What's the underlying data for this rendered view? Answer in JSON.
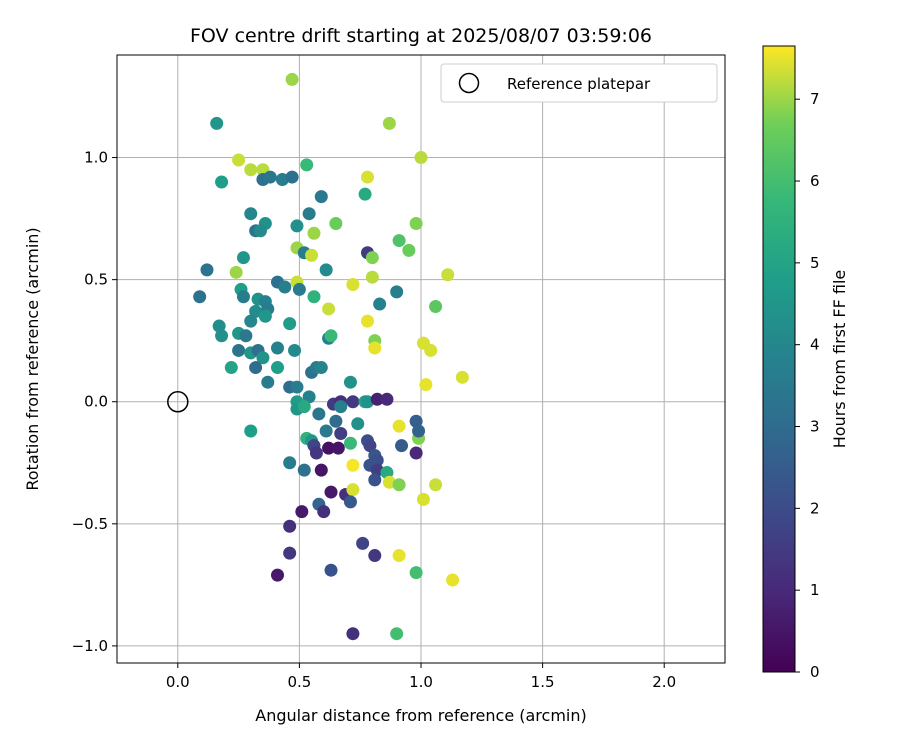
{
  "chart_data": {
    "type": "scatter",
    "title": "FOV centre drift starting at 2025/08/07 03:59:06",
    "xlabel": "Angular distance from reference (arcmin)",
    "ylabel": "Rotation from reference (arcmin)",
    "xlim": [
      -0.25,
      2.25
    ],
    "ylim": [
      -1.07,
      1.42
    ],
    "x_ticks": [
      0.0,
      0.5,
      1.0,
      1.5,
      2.0
    ],
    "x_tick_labels": [
      "0.0",
      "0.5",
      "1.0",
      "1.5",
      "2.0"
    ],
    "y_ticks": [
      -1.0,
      -0.5,
      0.0,
      0.5,
      1.0
    ],
    "y_tick_labels": [
      "−1.0",
      "−0.5",
      "0.0",
      "0.5",
      "1.0"
    ],
    "grid": true,
    "legend": {
      "location": "top-right",
      "entries": [
        "Reference platepar"
      ]
    },
    "reference_point": {
      "x": 0.0,
      "y": 0.0
    },
    "colorbar": {
      "label": "Hours from first FF file",
      "colormap": "viridis",
      "range": [
        0,
        7.65
      ],
      "ticks": [
        0,
        1,
        2,
        3,
        4,
        5,
        6,
        7
      ],
      "tick_labels": [
        "0",
        "1",
        "2",
        "3",
        "4",
        "5",
        "6",
        "7"
      ]
    },
    "points": [
      {
        "x": 0.47,
        "y": 1.32,
        "h": 7.0
      },
      {
        "x": 0.87,
        "y": 1.14,
        "h": 7.0
      },
      {
        "x": 0.16,
        "y": 1.14,
        "h": 4.5
      },
      {
        "x": 1.0,
        "y": 1.0,
        "h": 7.2
      },
      {
        "x": 0.25,
        "y": 0.99,
        "h": 7.3
      },
      {
        "x": 0.53,
        "y": 0.97,
        "h": 5.8
      },
      {
        "x": 0.3,
        "y": 0.95,
        "h": 7.2
      },
      {
        "x": 0.35,
        "y": 0.95,
        "h": 7.2
      },
      {
        "x": 0.78,
        "y": 0.92,
        "h": 7.4
      },
      {
        "x": 0.18,
        "y": 0.9,
        "h": 4.8
      },
      {
        "x": 0.35,
        "y": 0.91,
        "h": 3.2
      },
      {
        "x": 0.38,
        "y": 0.92,
        "h": 3.4
      },
      {
        "x": 0.43,
        "y": 0.91,
        "h": 3.6
      },
      {
        "x": 0.47,
        "y": 0.92,
        "h": 3.2
      },
      {
        "x": 0.77,
        "y": 0.85,
        "h": 5.2
      },
      {
        "x": 0.59,
        "y": 0.84,
        "h": 3.5
      },
      {
        "x": 0.3,
        "y": 0.77,
        "h": 4.0
      },
      {
        "x": 0.54,
        "y": 0.77,
        "h": 3.6
      },
      {
        "x": 0.36,
        "y": 0.73,
        "h": 4.3
      },
      {
        "x": 0.49,
        "y": 0.72,
        "h": 4.3
      },
      {
        "x": 0.65,
        "y": 0.73,
        "h": 6.6
      },
      {
        "x": 0.98,
        "y": 0.73,
        "h": 6.8
      },
      {
        "x": 0.32,
        "y": 0.7,
        "h": 3.3
      },
      {
        "x": 0.34,
        "y": 0.7,
        "h": 4.1
      },
      {
        "x": 0.56,
        "y": 0.69,
        "h": 7.0
      },
      {
        "x": 0.91,
        "y": 0.66,
        "h": 6.2
      },
      {
        "x": 0.49,
        "y": 0.63,
        "h": 7.0
      },
      {
        "x": 0.95,
        "y": 0.62,
        "h": 6.6
      },
      {
        "x": 0.78,
        "y": 0.61,
        "h": 1.5
      },
      {
        "x": 0.52,
        "y": 0.61,
        "h": 3.6
      },
      {
        "x": 0.27,
        "y": 0.59,
        "h": 4.5
      },
      {
        "x": 0.55,
        "y": 0.6,
        "h": 7.3
      },
      {
        "x": 0.8,
        "y": 0.59,
        "h": 6.8
      },
      {
        "x": 0.12,
        "y": 0.54,
        "h": 3.3
      },
      {
        "x": 0.61,
        "y": 0.54,
        "h": 4.1
      },
      {
        "x": 0.24,
        "y": 0.53,
        "h": 7.0
      },
      {
        "x": 0.8,
        "y": 0.51,
        "h": 7.2
      },
      {
        "x": 1.11,
        "y": 0.52,
        "h": 7.3
      },
      {
        "x": 0.41,
        "y": 0.49,
        "h": 3.2
      },
      {
        "x": 0.49,
        "y": 0.49,
        "h": 7.3
      },
      {
        "x": 0.44,
        "y": 0.47,
        "h": 3.7
      },
      {
        "x": 0.5,
        "y": 0.46,
        "h": 3.6
      },
      {
        "x": 0.72,
        "y": 0.48,
        "h": 7.4
      },
      {
        "x": 0.26,
        "y": 0.46,
        "h": 4.8
      },
      {
        "x": 0.09,
        "y": 0.43,
        "h": 3.2
      },
      {
        "x": 0.27,
        "y": 0.43,
        "h": 3.6
      },
      {
        "x": 0.33,
        "y": 0.42,
        "h": 4.4
      },
      {
        "x": 0.36,
        "y": 0.41,
        "h": 3.8
      },
      {
        "x": 0.56,
        "y": 0.43,
        "h": 5.5
      },
      {
        "x": 0.83,
        "y": 0.4,
        "h": 3.8
      },
      {
        "x": 0.9,
        "y": 0.45,
        "h": 3.7
      },
      {
        "x": 1.06,
        "y": 0.39,
        "h": 6.4
      },
      {
        "x": 0.62,
        "y": 0.38,
        "h": 7.3
      },
      {
        "x": 0.32,
        "y": 0.37,
        "h": 4.2
      },
      {
        "x": 0.37,
        "y": 0.38,
        "h": 3.6
      },
      {
        "x": 0.36,
        "y": 0.35,
        "h": 4.5
      },
      {
        "x": 0.3,
        "y": 0.33,
        "h": 4.0
      },
      {
        "x": 0.46,
        "y": 0.32,
        "h": 4.7
      },
      {
        "x": 0.78,
        "y": 0.33,
        "h": 7.5
      },
      {
        "x": 0.17,
        "y": 0.31,
        "h": 4.2
      },
      {
        "x": 0.18,
        "y": 0.27,
        "h": 4.3
      },
      {
        "x": 0.25,
        "y": 0.28,
        "h": 4.5
      },
      {
        "x": 0.28,
        "y": 0.27,
        "h": 3.5
      },
      {
        "x": 0.62,
        "y": 0.26,
        "h": 3.6
      },
      {
        "x": 0.63,
        "y": 0.27,
        "h": 5.8
      },
      {
        "x": 0.81,
        "y": 0.25,
        "h": 6.8
      },
      {
        "x": 1.01,
        "y": 0.24,
        "h": 7.4
      },
      {
        "x": 0.25,
        "y": 0.21,
        "h": 3.3
      },
      {
        "x": 0.3,
        "y": 0.2,
        "h": 4.5
      },
      {
        "x": 0.33,
        "y": 0.21,
        "h": 3.2
      },
      {
        "x": 0.41,
        "y": 0.22,
        "h": 3.8
      },
      {
        "x": 0.48,
        "y": 0.21,
        "h": 4.1
      },
      {
        "x": 0.81,
        "y": 0.22,
        "h": 7.5
      },
      {
        "x": 1.04,
        "y": 0.21,
        "h": 7.4
      },
      {
        "x": 0.35,
        "y": 0.18,
        "h": 4.4
      },
      {
        "x": 0.22,
        "y": 0.14,
        "h": 5.0
      },
      {
        "x": 0.32,
        "y": 0.14,
        "h": 3.0
      },
      {
        "x": 0.41,
        "y": 0.14,
        "h": 4.8
      },
      {
        "x": 0.55,
        "y": 0.12,
        "h": 3.2
      },
      {
        "x": 0.57,
        "y": 0.14,
        "h": 3.6
      },
      {
        "x": 0.59,
        "y": 0.14,
        "h": 3.9
      },
      {
        "x": 1.17,
        "y": 0.1,
        "h": 7.4
      },
      {
        "x": 0.37,
        "y": 0.08,
        "h": 3.6
      },
      {
        "x": 0.46,
        "y": 0.06,
        "h": 3.0
      },
      {
        "x": 0.49,
        "y": 0.06,
        "h": 3.6
      },
      {
        "x": 0.71,
        "y": 0.08,
        "h": 4.4
      },
      {
        "x": 1.02,
        "y": 0.07,
        "h": 7.5
      },
      {
        "x": 0.54,
        "y": 0.02,
        "h": 3.8
      },
      {
        "x": 0.49,
        "y": 0.0,
        "h": 4.7
      },
      {
        "x": 0.49,
        "y": -0.03,
        "h": 4.5
      },
      {
        "x": 0.52,
        "y": -0.02,
        "h": 5.2
      },
      {
        "x": 0.58,
        "y": -0.05,
        "h": 3.4
      },
      {
        "x": 0.64,
        "y": -0.01,
        "h": 1.5
      },
      {
        "x": 0.67,
        "y": 0.0,
        "h": 1.2
      },
      {
        "x": 0.67,
        "y": -0.02,
        "h": 3.7
      },
      {
        "x": 0.72,
        "y": 0.0,
        "h": 1.5
      },
      {
        "x": 0.77,
        "y": 0.0,
        "h": 5.0
      },
      {
        "x": 0.78,
        "y": 0.0,
        "h": 4.4
      },
      {
        "x": 0.82,
        "y": 0.01,
        "h": 0.8
      },
      {
        "x": 0.86,
        "y": 0.01,
        "h": 1.0
      },
      {
        "x": 0.98,
        "y": -0.08,
        "h": 2.6
      },
      {
        "x": 0.3,
        "y": -0.12,
        "h": 4.8
      },
      {
        "x": 0.53,
        "y": -0.15,
        "h": 5.5
      },
      {
        "x": 0.55,
        "y": -0.16,
        "h": 4.5
      },
      {
        "x": 0.61,
        "y": -0.12,
        "h": 3.5
      },
      {
        "x": 0.65,
        "y": -0.08,
        "h": 3.0
      },
      {
        "x": 0.67,
        "y": -0.13,
        "h": 1.6
      },
      {
        "x": 0.74,
        "y": -0.09,
        "h": 4.3
      },
      {
        "x": 0.91,
        "y": -0.1,
        "h": 7.5
      },
      {
        "x": 0.99,
        "y": -0.15,
        "h": 6.8
      },
      {
        "x": 0.99,
        "y": -0.12,
        "h": 2.7
      },
      {
        "x": 0.56,
        "y": -0.18,
        "h": 1.8
      },
      {
        "x": 0.57,
        "y": -0.21,
        "h": 1.4
      },
      {
        "x": 0.62,
        "y": -0.19,
        "h": 0.4
      },
      {
        "x": 0.66,
        "y": -0.19,
        "h": 0.5
      },
      {
        "x": 0.71,
        "y": -0.17,
        "h": 5.8
      },
      {
        "x": 0.78,
        "y": -0.16,
        "h": 2.1
      },
      {
        "x": 0.79,
        "y": -0.18,
        "h": 1.8
      },
      {
        "x": 0.81,
        "y": -0.22,
        "h": 2.3
      },
      {
        "x": 0.82,
        "y": -0.24,
        "h": 2.1
      },
      {
        "x": 0.92,
        "y": -0.18,
        "h": 2.5
      },
      {
        "x": 0.98,
        "y": -0.21,
        "h": 1.0
      },
      {
        "x": 0.46,
        "y": -0.25,
        "h": 3.6
      },
      {
        "x": 0.52,
        "y": -0.28,
        "h": 3.2
      },
      {
        "x": 0.59,
        "y": -0.28,
        "h": 0.5
      },
      {
        "x": 0.72,
        "y": -0.26,
        "h": 7.6
      },
      {
        "x": 0.79,
        "y": -0.26,
        "h": 2.2
      },
      {
        "x": 0.82,
        "y": -0.28,
        "h": 1.6
      },
      {
        "x": 0.86,
        "y": -0.29,
        "h": 5.2
      },
      {
        "x": 0.87,
        "y": -0.33,
        "h": 7.4
      },
      {
        "x": 0.81,
        "y": -0.32,
        "h": 2.2
      },
      {
        "x": 0.91,
        "y": -0.34,
        "h": 6.8
      },
      {
        "x": 1.06,
        "y": -0.34,
        "h": 7.3
      },
      {
        "x": 0.63,
        "y": -0.37,
        "h": 0.6
      },
      {
        "x": 0.69,
        "y": -0.38,
        "h": 1.2
      },
      {
        "x": 0.72,
        "y": -0.36,
        "h": 7.4
      },
      {
        "x": 0.71,
        "y": -0.41,
        "h": 2.4
      },
      {
        "x": 1.01,
        "y": -0.4,
        "h": 7.4
      },
      {
        "x": 0.51,
        "y": -0.45,
        "h": 0.6
      },
      {
        "x": 0.58,
        "y": -0.42,
        "h": 2.8
      },
      {
        "x": 0.6,
        "y": -0.45,
        "h": 1.2
      },
      {
        "x": 0.46,
        "y": -0.51,
        "h": 1.2
      },
      {
        "x": 0.76,
        "y": -0.58,
        "h": 1.8
      },
      {
        "x": 0.46,
        "y": -0.62,
        "h": 1.4
      },
      {
        "x": 0.81,
        "y": -0.63,
        "h": 1.4
      },
      {
        "x": 0.91,
        "y": -0.63,
        "h": 7.5
      },
      {
        "x": 0.63,
        "y": -0.69,
        "h": 2.2
      },
      {
        "x": 0.98,
        "y": -0.7,
        "h": 6.0
      },
      {
        "x": 0.41,
        "y": -0.71,
        "h": 0.6
      },
      {
        "x": 1.13,
        "y": -0.73,
        "h": 7.5
      },
      {
        "x": 0.72,
        "y": -0.95,
        "h": 1.2
      },
      {
        "x": 0.9,
        "y": -0.95,
        "h": 6.0
      }
    ]
  }
}
